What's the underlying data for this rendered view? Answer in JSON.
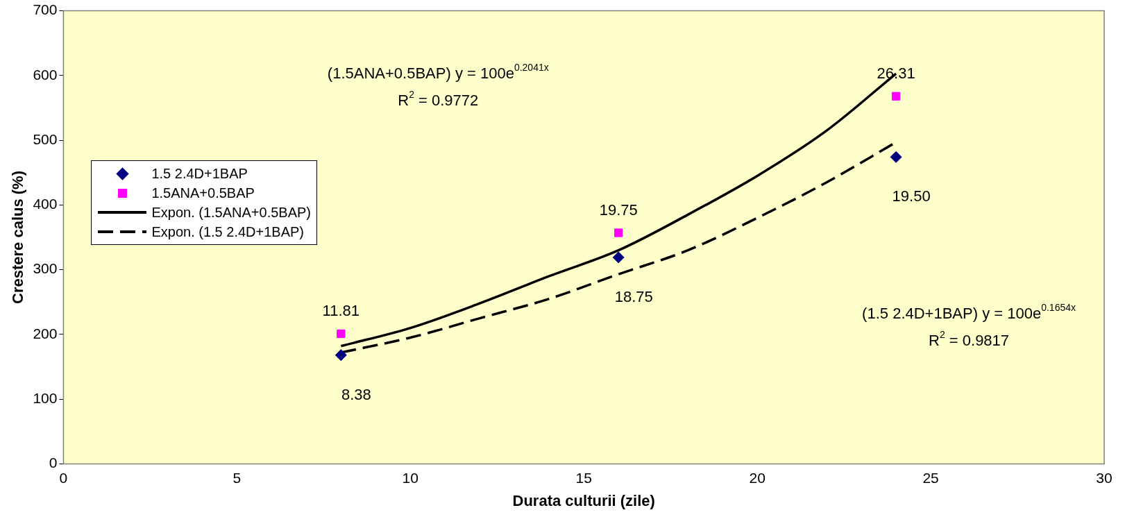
{
  "chart_data": {
    "type": "scatter",
    "xlabel": "Durata culturii (zile)",
    "ylabel": "Crestere calus (%)",
    "xlim": [
      0,
      30
    ],
    "xticks": [
      0,
      5,
      10,
      15,
      20,
      25,
      30
    ],
    "ylim": [
      0,
      700
    ],
    "yticks": [
      0,
      100,
      200,
      300,
      400,
      500,
      600,
      700
    ],
    "grid": false,
    "legend": "left",
    "series": [
      {
        "name": "1.5 2.4D+1BAP",
        "type": "scatter",
        "marker": "diamond",
        "color": "#000080",
        "x": [
          8,
          16,
          24
        ],
        "values": [
          168,
          319,
          474
        ]
      },
      {
        "name": "1.5ANA+0.5BAP",
        "type": "scatter",
        "marker": "square",
        "color": "#ff00ff",
        "x": [
          8,
          16,
          24
        ],
        "values": [
          201,
          357,
          568
        ]
      },
      {
        "name": "Expon. (1.5ANA+0.5BAP)",
        "type": "line",
        "line_style": "solid",
        "color": "#000000",
        "x": [
          8,
          10,
          12,
          14,
          16,
          18,
          20,
          22,
          24
        ],
        "values": [
          182,
          210,
          248,
          290,
          330,
          385,
          445,
          515,
          603
        ]
      },
      {
        "name": "Expon. (1.5 2.4D+1BAP)",
        "type": "line",
        "line_style": "dashed",
        "color": "#000000",
        "x": [
          8,
          10,
          12,
          14,
          16,
          18,
          20,
          22,
          24
        ],
        "values": [
          172,
          195,
          225,
          255,
          293,
          330,
          380,
          435,
          497
        ]
      }
    ],
    "annotations": [
      {
        "text": "8.38",
        "x": 8,
        "y": 168
      },
      {
        "text": "11.81",
        "x": 8,
        "y": 201
      },
      {
        "text": "19.75",
        "x": 16,
        "y": 357
      },
      {
        "text": "18.75",
        "x": 16,
        "y": 319
      },
      {
        "text": "26.31",
        "x": 24,
        "y": 568
      },
      {
        "text": "19.50",
        "x": 24,
        "y": 474
      },
      "(1.5ANA+0.5BAP) y = 100e$^{0.2041x}$",
      "R$^{2}$ = 0.9772",
      "(1.5 2.4D+1BAP) y = 100e$^{0.1654x}$",
      "R$^{2}$ = 0.9817"
    ]
  }
}
